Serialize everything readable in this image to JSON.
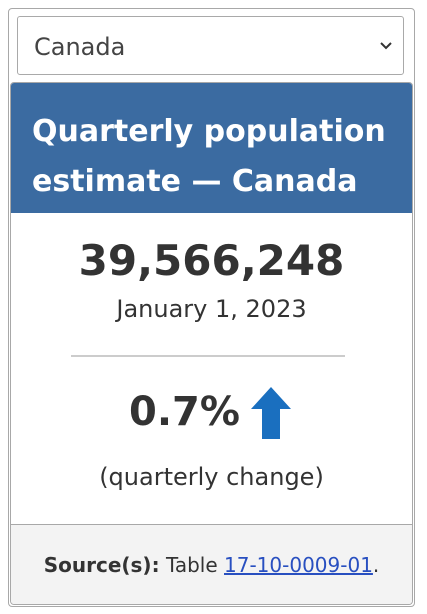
{
  "selector": {
    "value": "Canada"
  },
  "card": {
    "title_line1": "Quarterly population",
    "title_line2": "estimate — Canada",
    "population": "39,566,248",
    "date": "January 1, 2023",
    "change_value": "0.7%",
    "change_caption": "(quarterly change)",
    "arrow_icon": "arrow-up-icon",
    "arrow_color": "#1a6fbf",
    "header_color": "#3b6ba1"
  },
  "footer": {
    "source_label": "Source(s):",
    "table_prefix": "Table",
    "table_link": "17-10-0009-01",
    "period": "."
  }
}
